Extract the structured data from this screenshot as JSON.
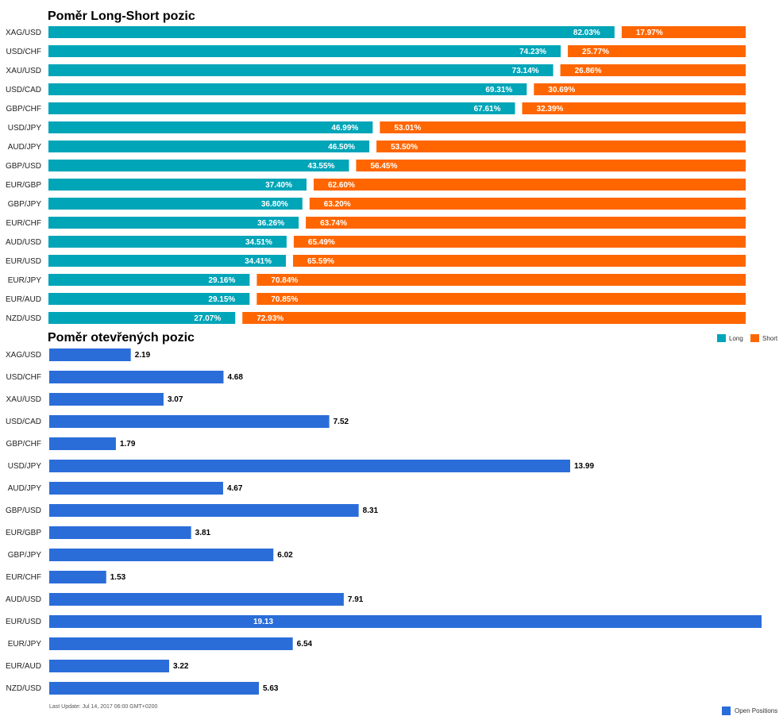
{
  "colors": {
    "long": "#00A5B8",
    "short": "#FF6600",
    "open": "#2A6DD9"
  },
  "chart_data": [
    {
      "type": "bar",
      "orientation": "horizontal",
      "stacked": true,
      "title": "Poměr Long-Short pozic",
      "categories": [
        "XAG/USD",
        "USD/CHF",
        "XAU/USD",
        "USD/CAD",
        "GBP/CHF",
        "USD/JPY",
        "AUD/JPY",
        "GBP/USD",
        "EUR/GBP",
        "GBP/JPY",
        "EUR/CHF",
        "AUD/USD",
        "EUR/USD",
        "EUR/JPY",
        "EUR/AUD",
        "NZD/USD"
      ],
      "series": [
        {
          "name": "Long",
          "color": "#00A5B8",
          "values": [
            82.03,
            74.23,
            73.14,
            69.31,
            67.61,
            46.99,
            46.5,
            43.55,
            37.4,
            36.8,
            36.26,
            34.51,
            34.41,
            29.16,
            29.15,
            27.07
          ]
        },
        {
          "name": "Short",
          "color": "#FF6600",
          "values": [
            17.97,
            25.77,
            26.86,
            30.69,
            32.39,
            53.01,
            53.5,
            56.45,
            62.6,
            63.2,
            63.74,
            65.49,
            65.59,
            70.84,
            70.85,
            72.93
          ]
        }
      ],
      "data_labels": {
        "long": [
          "82.03%",
          "74.23%",
          "73.14%",
          "69.31%",
          "67.61%",
          "46.99%",
          "46.50%",
          "43.55%",
          "37.40%",
          "36.80%",
          "36.26%",
          "34.51%",
          "34.41%",
          "29.16%",
          "29.15%",
          "27.07%"
        ],
        "short": [
          "17.97%",
          "25.77%",
          "26.86%",
          "30.69%",
          "32.39%",
          "53.01%",
          "53.50%",
          "56.45%",
          "62.60%",
          "63.20%",
          "63.74%",
          "65.49%",
          "65.59%",
          "70.84%",
          "70.85%",
          "72.93%"
        ]
      },
      "xlim": [
        0,
        100
      ],
      "legend": [
        "Long",
        "Short"
      ],
      "legend_position": "right, below chart",
      "grid": false
    },
    {
      "type": "bar",
      "orientation": "horizontal",
      "title": "Poměr otevřených pozic",
      "categories": [
        "XAG/USD",
        "USD/CHF",
        "XAU/USD",
        "USD/CAD",
        "GBP/CHF",
        "USD/JPY",
        "AUD/JPY",
        "GBP/USD",
        "EUR/GBP",
        "GBP/JPY",
        "EUR/CHF",
        "AUD/USD",
        "EUR/USD",
        "EUR/JPY",
        "EUR/AUD",
        "NZD/USD"
      ],
      "series": [
        {
          "name": "Open Positions",
          "color": "#2A6DD9",
          "values": [
            2.19,
            4.68,
            3.07,
            7.52,
            1.79,
            13.99,
            4.67,
            8.31,
            3.81,
            6.02,
            1.53,
            7.91,
            19.13,
            6.54,
            3.22,
            5.63
          ]
        }
      ],
      "data_labels": [
        "2.19",
        "4.68",
        "3.07",
        "7.52",
        "1.79",
        "13.99",
        "4.67",
        "8.31",
        "3.81",
        "6.02",
        "1.53",
        "7.91",
        "19.13",
        "6.54",
        "3.22",
        "5.63"
      ],
      "xlim": [
        0,
        19.13
      ],
      "legend": [
        "Open Positions"
      ],
      "legend_position": "bottom-right",
      "grid": false
    }
  ],
  "footer": {
    "last_update": "Last Update: Jul 14, 2017 06:00 GMT+0200"
  }
}
